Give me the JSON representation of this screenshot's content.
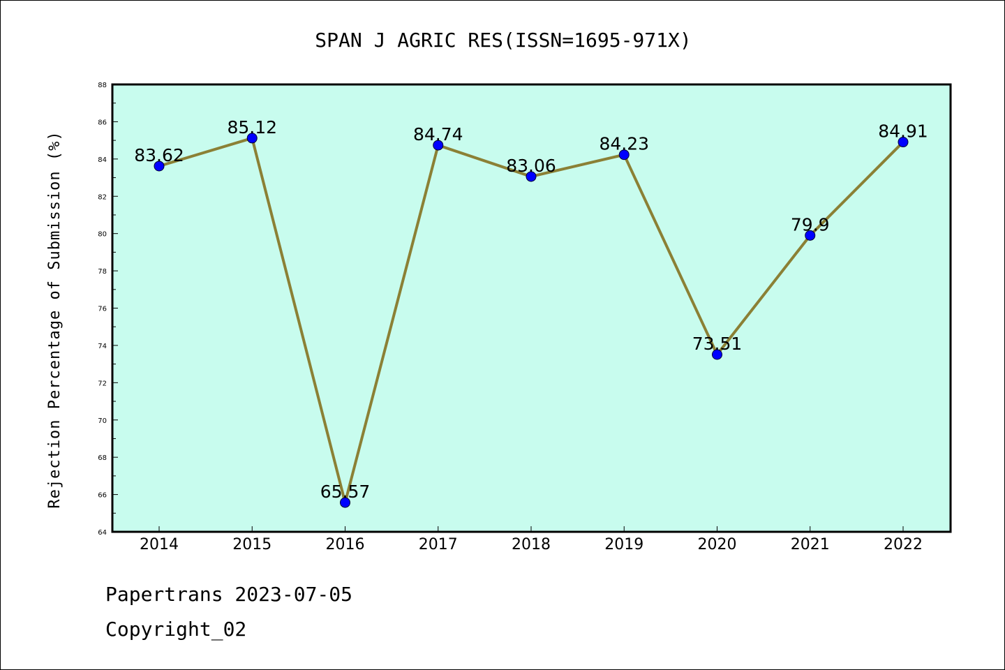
{
  "colors": {
    "plot_background": "#c8fcee",
    "line": "#8b8035",
    "marker": "#0000ff",
    "axis": "#000000"
  },
  "footer": {
    "line1": "Papertrans 2023-07-05",
    "line2": "Copyright_02"
  },
  "chart_data": {
    "type": "line",
    "title": "SPAN J AGRIC RES(ISSN=1695-971X)",
    "xlabel": "",
    "ylabel": "Rejection Percentage of Submission (%)",
    "categories": [
      "2014",
      "2015",
      "2016",
      "2017",
      "2018",
      "2019",
      "2020",
      "2021",
      "2022"
    ],
    "series": [
      {
        "values": [
          83.62,
          85.12,
          65.57,
          84.74,
          83.06,
          84.23,
          73.51,
          79.9,
          84.91
        ],
        "data_labels": [
          "83.62",
          "85.12",
          "65.57",
          "84.74",
          "83.06",
          "84.23",
          "73.51",
          "79.9",
          "84.91"
        ]
      }
    ],
    "ylim": [
      64,
      88
    ],
    "yticks": [
      "64",
      "66",
      "68",
      "70",
      "72",
      "74",
      "76",
      "78",
      "80",
      "82",
      "84",
      "86",
      "88"
    ],
    "grid": false,
    "legend": "none"
  }
}
